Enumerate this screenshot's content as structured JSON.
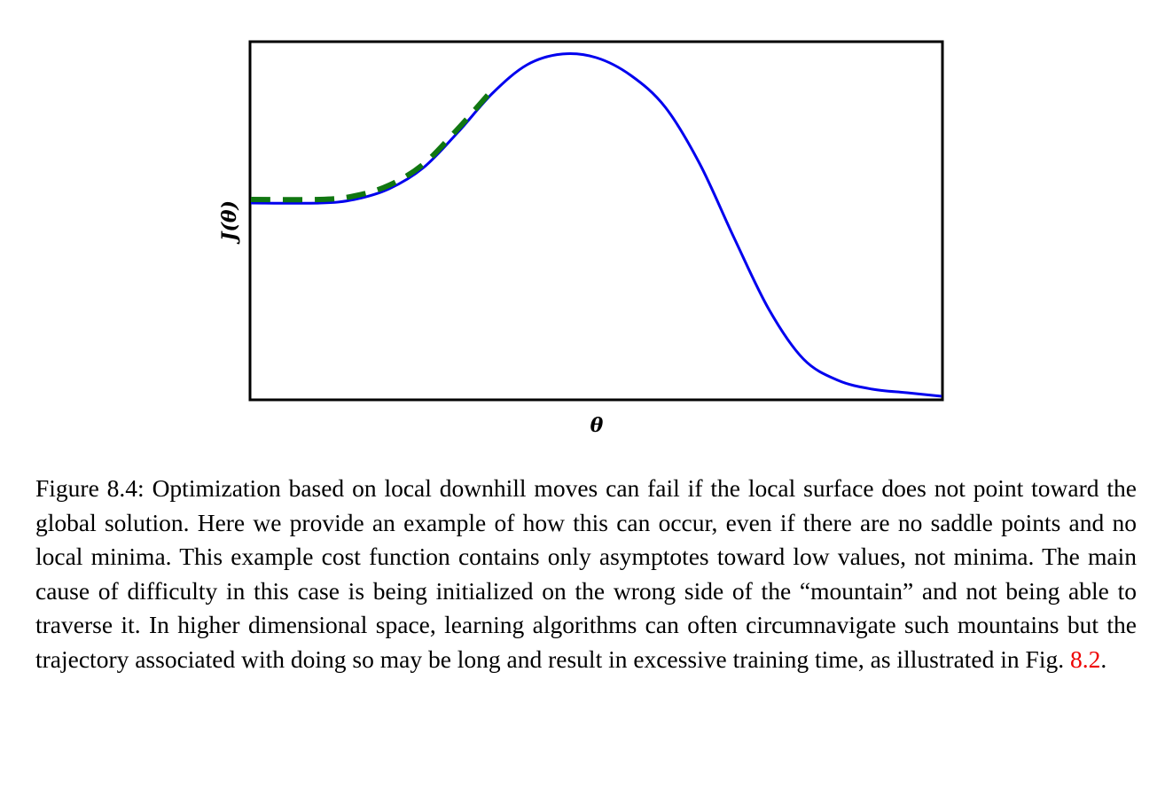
{
  "chart_data": {
    "type": "line",
    "title": "",
    "xlabel": "θ",
    "ylabel": "J(θ)",
    "xlim": [
      0,
      1
    ],
    "ylim": [
      0,
      1
    ],
    "grid": false,
    "ticks": false,
    "series": [
      {
        "style": "solid",
        "color": "#0000ee",
        "x": [
          0.0,
          0.1,
          0.15,
          0.2,
          0.25,
          0.3,
          0.35,
          0.4,
          0.45,
          0.5,
          0.55,
          0.6,
          0.65,
          0.7,
          0.75,
          0.8,
          0.85,
          0.9,
          0.95,
          1.0
        ],
        "y": [
          0.55,
          0.55,
          0.56,
          0.59,
          0.65,
          0.75,
          0.86,
          0.94,
          0.97,
          0.96,
          0.91,
          0.82,
          0.66,
          0.45,
          0.25,
          0.11,
          0.05,
          0.025,
          0.015,
          0.005
        ]
      },
      {
        "style": "dashed",
        "color": "#117711",
        "x": [
          0.0,
          0.1,
          0.15,
          0.2,
          0.25,
          0.3,
          0.35
        ],
        "y": [
          0.56,
          0.56,
          0.57,
          0.6,
          0.66,
          0.76,
          0.87
        ]
      }
    ]
  },
  "caption": {
    "prefix": "Figure 8.4: Optimization based on local downhill moves can fail if the local surface does not point toward the global solution. Here we provide an example of how this can occur, even if there are no saddle points and no local minima. This example cost function contains only asymptotes toward low values, not minima. The main cause of difficulty in this case is being initialized on the wrong side of the “mountain” and not being able to traverse it. In higher dimensional space, learning algorithms can often circumnavigate such mountains but the trajectory associated with doing so may be long and result in excessive training time, as illustrated in Fig. ",
    "ref": "8.2",
    "suffix": "."
  }
}
